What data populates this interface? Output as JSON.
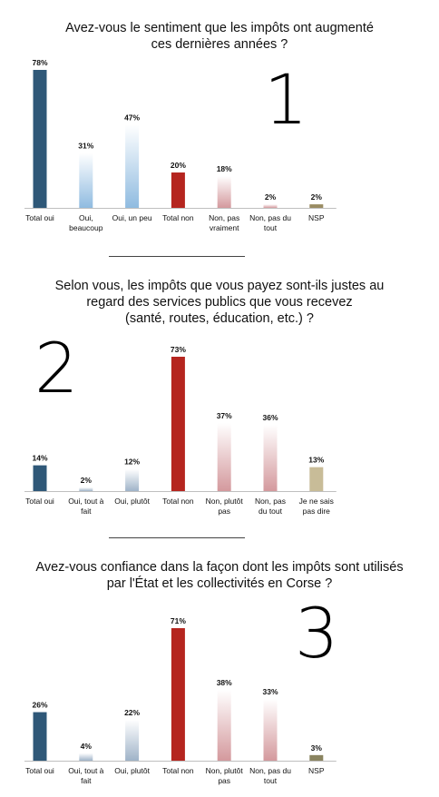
{
  "chart_data": [
    {
      "type": "bar",
      "number_label": "1",
      "title_lines": [
        "Avez-vous le sentiment que les impôts ont augmenté",
        "ces dernières années ?"
      ],
      "categories": [
        [
          "Total oui"
        ],
        [
          "Oui,",
          "beaucoup"
        ],
        [
          "Oui, un peu"
        ],
        [
          "Total non"
        ],
        [
          "Non, pas",
          "vraiment"
        ],
        [
          "Non, pas du",
          "tout"
        ],
        [
          "NSP"
        ]
      ],
      "value_labels": [
        "78%",
        "31%",
        "47%",
        "20%",
        "18%",
        "2%",
        "2%"
      ],
      "values": [
        78,
        31,
        47,
        20,
        18,
        2,
        2
      ],
      "styles": [
        "navy",
        "lightblue",
        "lightblue",
        "red",
        "pink",
        "pink",
        "khaki"
      ],
      "ylim": [
        0,
        78
      ]
    },
    {
      "type": "bar",
      "number_label": "2",
      "title_lines": [
        "Selon vous, les impôts que vous payez sont-ils justes au",
        "regard des services publics que vous recevez",
        "(santé, routes, éducation, etc.) ?"
      ],
      "categories": [
        [
          "Total oui"
        ],
        [
          "Oui, tout à",
          "fait"
        ],
        [
          "Oui, plutôt"
        ],
        [
          "Total non"
        ],
        [
          "Non, plutôt",
          "pas"
        ],
        [
          "Non, pas",
          "du tout"
        ],
        [
          "Je ne sais",
          "pas dire"
        ]
      ],
      "value_labels": [
        "14%",
        "2%",
        "12%",
        "73%",
        "37%",
        "36%",
        "13%"
      ],
      "values": [
        14,
        2,
        12,
        73,
        37,
        36,
        13
      ],
      "styles": [
        "navy",
        "grayblue",
        "grayblue",
        "red",
        "pink",
        "pink",
        "tan"
      ],
      "ylim": [
        0,
        73
      ]
    },
    {
      "type": "bar",
      "number_label": "3",
      "title_lines": [
        "Avez-vous confiance dans la façon dont les impôts sont utilisés",
        "par l'État et les collectivités en Corse ?"
      ],
      "categories": [
        [
          "Total oui"
        ],
        [
          "Oui, tout à",
          "fait"
        ],
        [
          "Oui, plutôt"
        ],
        [
          "Total non"
        ],
        [
          "Non, plutôt",
          "pas"
        ],
        [
          "Non, pas du",
          "tout"
        ],
        [
          "NSP"
        ]
      ],
      "value_labels": [
        "26%",
        "4%",
        "22%",
        "71%",
        "38%",
        "33%",
        "3%"
      ],
      "values": [
        26,
        4,
        22,
        71,
        38,
        33,
        3
      ],
      "styles": [
        "navy",
        "grayblue",
        "grayblue",
        "red",
        "pink",
        "pink",
        "olive"
      ],
      "ylim": [
        0,
        71
      ]
    }
  ],
  "colors": {
    "navy": "#2f5878",
    "lightblue": "#8fbbe0",
    "grayblue": "#9fb3c8",
    "red": "#b5251f",
    "pink": "#d4999d",
    "khaki": "#9a8c63",
    "tan": "#c8bc98",
    "olive": "#8a8460"
  }
}
